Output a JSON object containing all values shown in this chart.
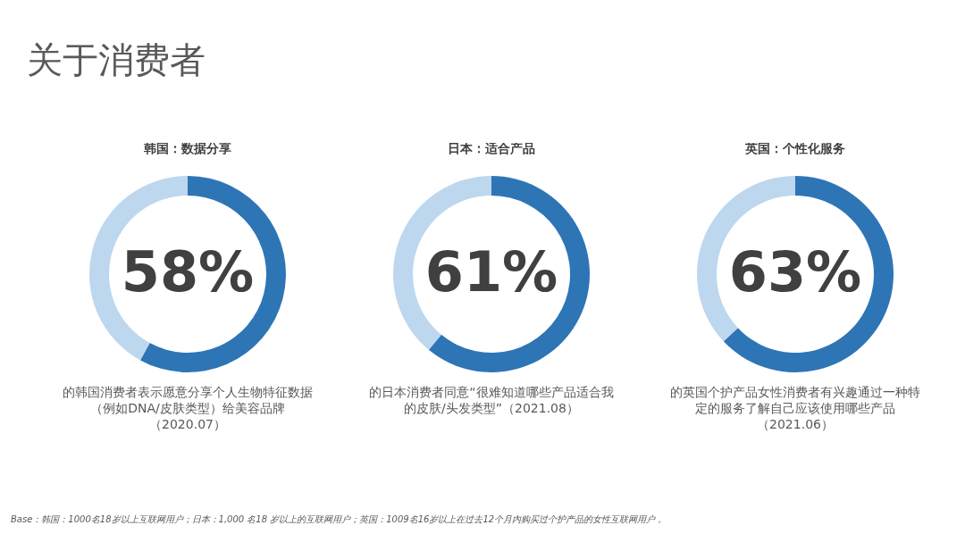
{
  "chart_data": [
    {
      "type": "donut",
      "title": "韩国：数据分享",
      "categories": [
        null,
        null
      ],
      "values": [
        58,
        42
      ],
      "colors": [
        "#2e75b6",
        "#bdd7ee"
      ],
      "value_labels": [
        "58%",
        null
      ],
      "legend": false,
      "annotations": [
        "的韩国消费者表示愿意分享个人生物特征数据（例如DNA/皮肤类型）给美容品牌（2020.07）",
        "关于消费者"
      ]
    },
    {
      "type": "donut",
      "title": "日本：适合产品",
      "categories": [
        null,
        null
      ],
      "values": [
        61,
        39
      ],
      "colors": [
        "#2e75b6",
        "#bdd7ee"
      ],
      "value_labels": [
        "61%",
        null
      ],
      "legend": false,
      "annotations": [
        "的日本消费者同意“很难知道哪些产品适合我的皮肤/头发类型”（2021.08）"
      ]
    },
    {
      "type": "donut",
      "title": "英国：个性化服务",
      "categories": [
        null,
        null
      ],
      "values": [
        63,
        37
      ],
      "colors": [
        "#2e75b6",
        "#bdd7ee"
      ],
      "value_labels": [
        "63%",
        null
      ],
      "legend": false,
      "annotations": [
        "的英国个护产品女性消费者有兴趣通过一种特定的服务了解自己应该使用哪些产品（2021.06）",
        "Base：韩国：1000名18岁以上互联网用户；日本：1,000 名18 岁以上的互联网用户；英国：1009名16岁以上在过去12个月内购买过个护产品的女性互联网用户，"
      ]
    }
  ]
}
